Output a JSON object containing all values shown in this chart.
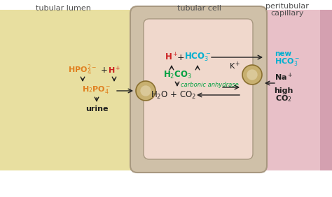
{
  "bg_color": "#f5f5f5",
  "lumen_bg": "#e8dfa0",
  "cell_outer_bg": "#cfc0a8",
  "cell_inner_bg": "#f0d8cc",
  "capillary_bg": "#e8c0c8",
  "capillary_left_stripe": "#d4a0b0",
  "capillary_right_stripe": "#d4a0b0",
  "section_labels": {
    "lumen": "tubular lumen",
    "cell": "tubular cell",
    "capillary_line1": "peritubular",
    "capillary_line2": "capillary"
  },
  "colors": {
    "orange": "#e08020",
    "red": "#cc2020",
    "green": "#00a040",
    "black": "#202020",
    "cyan": "#00b0d0",
    "label": "#505050"
  },
  "membrane_face": "#c8b070",
  "membrane_edge": "#8a7030",
  "membrane_inner": "#dac898"
}
